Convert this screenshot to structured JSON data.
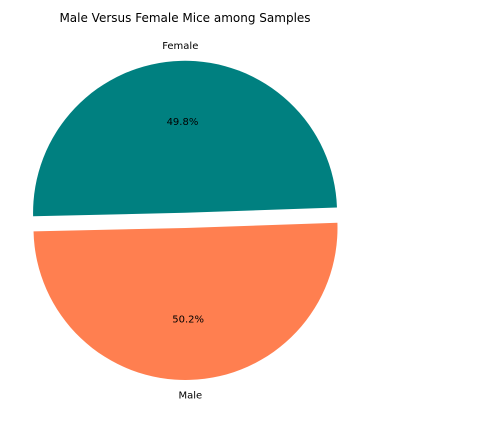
{
  "chart_data": {
    "type": "pie",
    "title": "Male Versus Female Mice among Samples",
    "labels": [
      "Female",
      "Male"
    ],
    "values": [
      49.8,
      50.2
    ],
    "percent_labels": [
      "49.8%",
      "50.2%"
    ],
    "colors": [
      "#008080",
      "#FF7F50"
    ],
    "explode": [
      0.1,
      0
    ],
    "start_angle_deg": 2,
    "legend": "none"
  }
}
